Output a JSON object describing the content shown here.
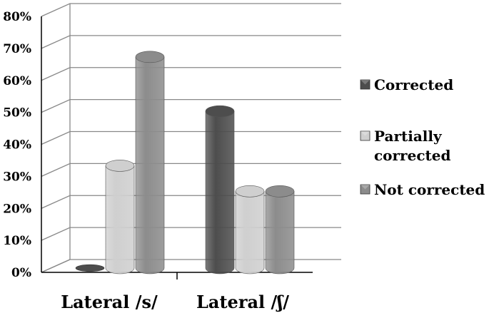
{
  "chart_data": {
    "type": "bar",
    "categories": [
      "Lateral /s/",
      "Lateral /ʃ/"
    ],
    "series": [
      {
        "name": "Corrected",
        "values": [
          0,
          49
        ],
        "color": "#4d4d4d"
      },
      {
        "name": "Partially corrected",
        "values": [
          32,
          24
        ],
        "color": "#cfcfcf"
      },
      {
        "name": "Not corrected",
        "values": [
          66,
          24
        ],
        "color": "#8c8c8c"
      }
    ],
    "y_ticks": [
      "0%",
      "10%",
      "20%",
      "30%",
      "40%",
      "50%",
      "60%",
      "70%",
      "80%"
    ],
    "ylim": [
      0,
      80
    ],
    "y_unit": "%",
    "grid": true,
    "legend_position": "right"
  },
  "legend": {
    "items": [
      {
        "lines": [
          "Corrected"
        ]
      },
      {
        "lines": [
          "Partially",
          "corrected"
        ]
      },
      {
        "lines": [
          "Not corrected"
        ]
      }
    ]
  }
}
